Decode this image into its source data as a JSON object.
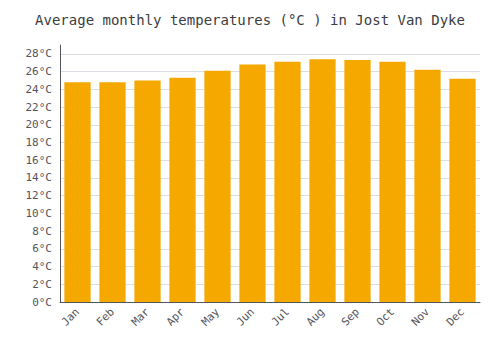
{
  "chart_data": {
    "type": "bar",
    "title": "Average monthly temperatures (°C ) in Jost Van Dyke",
    "categories": [
      "Jan",
      "Feb",
      "Mar",
      "Apr",
      "May",
      "Jun",
      "Jul",
      "Aug",
      "Sep",
      "Oct",
      "Nov",
      "Dec"
    ],
    "values": [
      24.8,
      24.8,
      25.0,
      25.3,
      26.1,
      26.8,
      27.1,
      27.4,
      27.3,
      27.1,
      26.2,
      25.2
    ],
    "color": "#F5A800",
    "ylim": [
      0,
      29
    ],
    "yticks": [
      {
        "value": 0,
        "label": "0°C"
      },
      {
        "value": 2,
        "label": "2°C"
      },
      {
        "value": 4,
        "label": "4°C"
      },
      {
        "value": 6,
        "label": "6°C"
      },
      {
        "value": 8,
        "label": "8°C"
      },
      {
        "value": 10,
        "label": "10°C"
      },
      {
        "value": 12,
        "label": "12°C"
      },
      {
        "value": 14,
        "label": "14°C"
      },
      {
        "value": 16,
        "label": "16°C"
      },
      {
        "value": 18,
        "label": "18°C"
      },
      {
        "value": 20,
        "label": "20°C"
      },
      {
        "value": 22,
        "label": "22°C"
      },
      {
        "value": 24,
        "label": "24°C"
      },
      {
        "value": 26,
        "label": "26°C"
      },
      {
        "value": 28,
        "label": "28°C"
      }
    ],
    "grid": true
  }
}
